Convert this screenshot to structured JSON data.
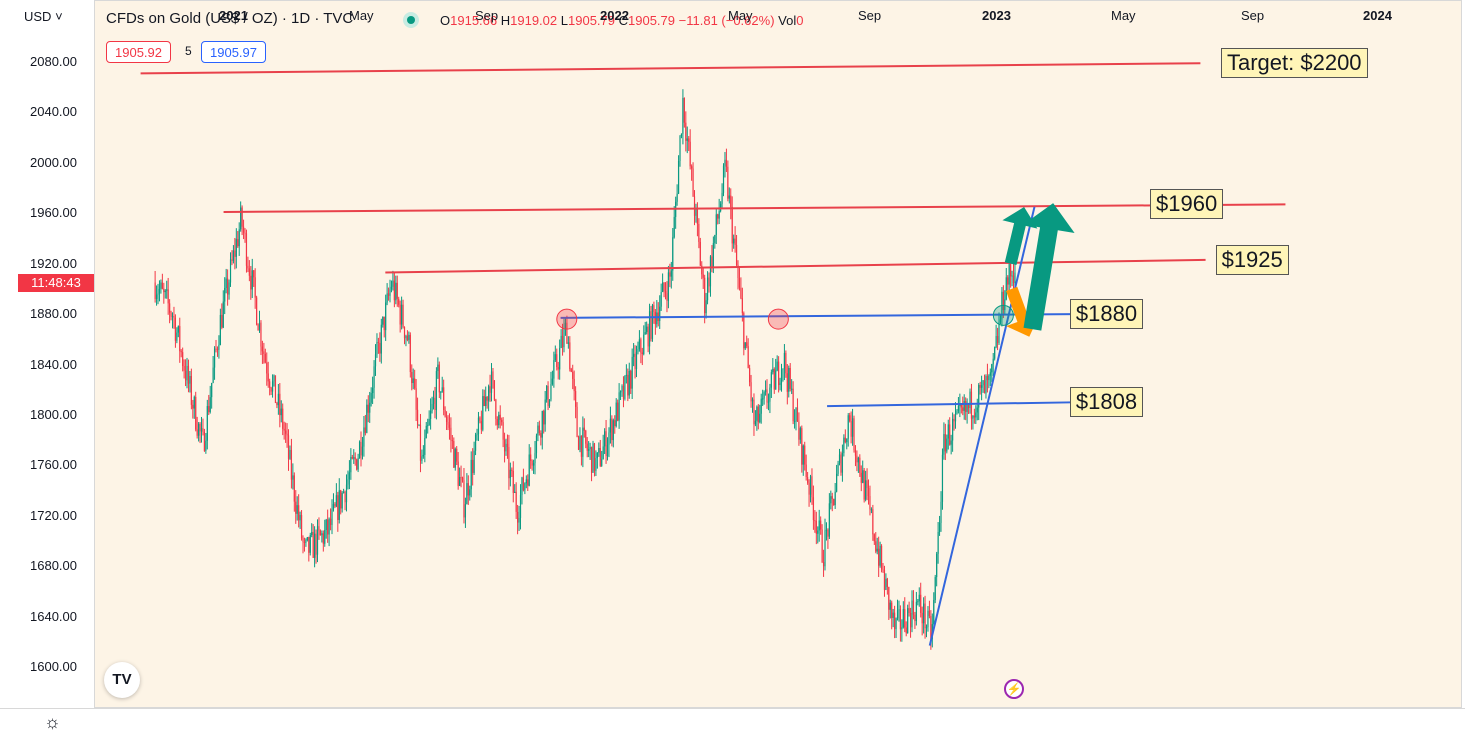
{
  "header": {
    "currency": "USD",
    "title": "CFDs on Gold (US$ / OZ) · 1D · TVC",
    "ohlc": {
      "o_label": "O",
      "o": "1915.66",
      "h_label": "H",
      "h": "1919.02",
      "l_label": "L",
      "l": "1905.79",
      "c_label": "C",
      "c": "1905.79",
      "change": "−11.81 (−0.62%)",
      "vol_label": "Vol",
      "vol": "0"
    },
    "bid": "1905.92",
    "spread": "5",
    "ask": "1905.97",
    "countdown": "11:48:43"
  },
  "colors": {
    "up": "#089981",
    "down": "#f23645",
    "resistance": "#e8414b",
    "support": "#3366dd",
    "arrow_up": "#089981",
    "arrow_down": "#ff9800",
    "label_bg": "#fff5b8"
  },
  "icons": {
    "logo": "tradingview-logo-icon",
    "flash": "lightning-icon",
    "settings": "gear-icon"
  },
  "chart_data": {
    "type": "candlestick",
    "y_ticks": [
      "2080.00",
      "2040.00",
      "2000.00",
      "1960.00",
      "1920.00",
      "1880.00",
      "1840.00",
      "1800.00",
      "1760.00",
      "1720.00",
      "1680.00",
      "1640.00",
      "1600.00"
    ],
    "x_ticks": [
      {
        "label": "2021",
        "bold": true
      },
      {
        "label": "May",
        "bold": false
      },
      {
        "label": "Sep",
        "bold": false
      },
      {
        "label": "2022",
        "bold": true
      },
      {
        "label": "May",
        "bold": false
      },
      {
        "label": "Sep",
        "bold": false
      },
      {
        "label": "2023",
        "bold": true
      },
      {
        "label": "May",
        "bold": false
      },
      {
        "label": "Sep",
        "bold": false
      },
      {
        "label": "2024",
        "bold": true
      }
    ],
    "ylim": [
      1570,
      2125
    ],
    "price_path": [
      [
        "2020-10-15",
        1905
      ],
      [
        "2020-11-01",
        1880
      ],
      [
        "2020-11-09",
        1850
      ],
      [
        "2020-11-30",
        1775
      ],
      [
        "2020-12-16",
        1870
      ],
      [
        "2021-01-06",
        1955
      ],
      [
        "2021-01-29",
        1845
      ],
      [
        "2021-02-16",
        1790
      ],
      [
        "2021-03-08",
        1690
      ],
      [
        "2021-03-31",
        1708
      ],
      [
        "2021-04-29",
        1770
      ],
      [
        "2021-05-31",
        1905
      ],
      [
        "2021-06-16",
        1860
      ],
      [
        "2021-06-29",
        1760
      ],
      [
        "2021-07-15",
        1830
      ],
      [
        "2021-08-09",
        1730
      ],
      [
        "2021-09-03",
        1830
      ],
      [
        "2021-09-29",
        1725
      ],
      [
        "2021-10-22",
        1795
      ],
      [
        "2021-11-16",
        1870
      ],
      [
        "2021-11-26",
        1785
      ],
      [
        "2021-12-15",
        1760
      ],
      [
        "2022-01-25",
        1850
      ],
      [
        "2022-02-24",
        1910
      ],
      [
        "2022-03-08",
        2050
      ],
      [
        "2022-03-29",
        1890
      ],
      [
        "2022-04-18",
        1995
      ],
      [
        "2022-05-16",
        1790
      ],
      [
        "2022-06-13",
        1845
      ],
      [
        "2022-07-21",
        1690
      ],
      [
        "2022-08-15",
        1800
      ],
      [
        "2022-09-28",
        1630
      ],
      [
        "2022-10-21",
        1650
      ],
      [
        "2022-11-03",
        1625
      ],
      [
        "2022-11-15",
        1780
      ],
      [
        "2022-12-13",
        1810
      ],
      [
        "2022-12-30",
        1825
      ],
      [
        "2023-01-13",
        1905
      ],
      [
        "2023-01-23",
        1918
      ]
    ],
    "levels": [
      {
        "label": "Target: $2200",
        "kind": "resistance",
        "start": "2020-10-01",
        "end": "2023-07-20",
        "y_start": 2071,
        "y_end": 2079
      },
      {
        "label": "$1960",
        "kind": "resistance",
        "start": "2020-12-20",
        "end": "2023-10-10",
        "y_start": 1961,
        "y_end": 1967
      },
      {
        "label": "$1925",
        "kind": "resistance",
        "start": "2021-05-25",
        "end": "2023-07-25",
        "y_start": 1913,
        "y_end": 1923
      },
      {
        "label": "$1880",
        "kind": "support",
        "start": "2021-11-10",
        "end": "2023-03-20",
        "y_start": 1877,
        "y_end": 1880
      },
      {
        "label": "$1808",
        "kind": "support",
        "start": "2022-07-25",
        "end": "2023-03-20",
        "y_start": 1807,
        "y_end": 1810
      }
    ],
    "trendline": {
      "start": "2022-11-01",
      "y_start": 1617,
      "end": "2023-02-10",
      "y_end": 1965
    },
    "markers": [
      {
        "date": "2021-11-16",
        "price": 1876,
        "kind": "down"
      },
      {
        "date": "2022-06-08",
        "price": 1876,
        "kind": "down"
      },
      {
        "date": "2023-01-11",
        "price": 1879,
        "kind": "up"
      }
    ],
    "arrows": [
      {
        "kind": "up",
        "from": [
          "2023-01-18",
          1920
        ],
        "to": [
          "2023-01-31",
          1965
        ]
      },
      {
        "kind": "down",
        "from": [
          "2023-01-19",
          1900
        ],
        "to": [
          "2023-02-05",
          1862
        ]
      },
      {
        "kind": "up",
        "from": [
          "2023-02-08",
          1868
        ],
        "to": [
          "2023-02-28",
          1968
        ]
      }
    ]
  }
}
